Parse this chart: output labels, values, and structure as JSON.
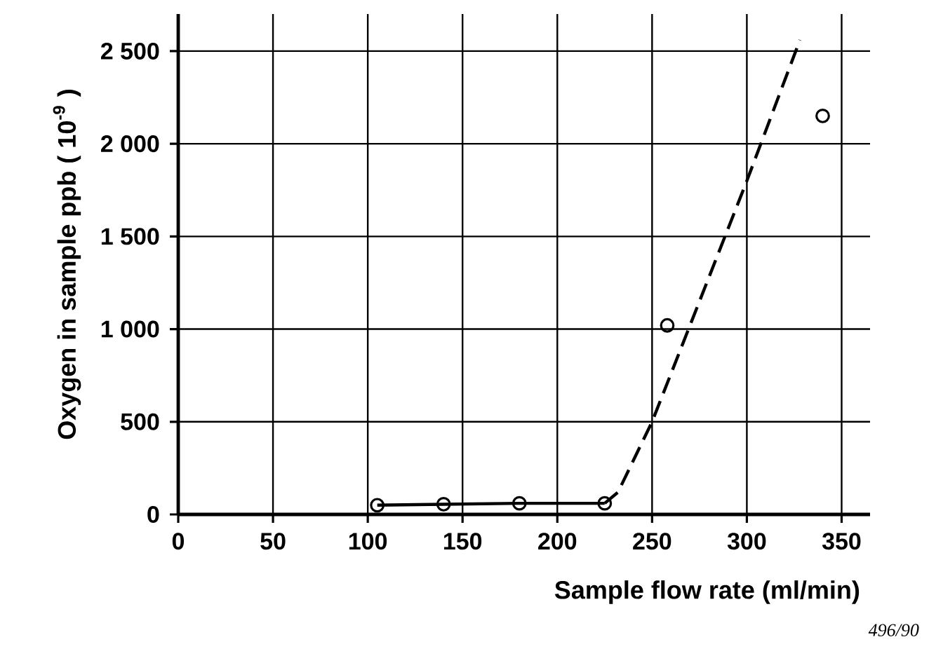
{
  "chart_data": {
    "type": "scatter",
    "xlabel": "Sample flow rate (ml/min)",
    "ylabel": "Oxygen in sample ppb ( 10$^{-9}$ )",
    "annotations": [
      "496/90"
    ],
    "xlim": [
      0,
      365
    ],
    "ylim": [
      0,
      2700
    ],
    "xticks": [
      0,
      50,
      100,
      150,
      200,
      250,
      300,
      350
    ],
    "yticks": [
      0,
      500,
      {
        "value": 1000,
        "label": "1 000"
      },
      {
        "value": 1500,
        "label": "1 500"
      },
      {
        "value": 2000,
        "label": "2 000"
      },
      {
        "value": 2500,
        "label": "2 500"
      }
    ],
    "grid": true,
    "series": [
      {
        "type": "line",
        "color": "#000000",
        "marker": "circle",
        "line_style": "solid",
        "x": [
          105,
          140,
          180,
          225
        ],
        "values": [
          50,
          55,
          60,
          60
        ]
      },
      {
        "color": "#000000",
        "marker": "circle",
        "x": [
          258,
          340
        ],
        "values": [
          1020,
          2150
        ]
      },
      {
        "type": "line",
        "color": "#000000",
        "marker": "none",
        "line_style": "dashed",
        "x": [
          225,
          232,
          250,
          300,
          328
        ],
        "values": [
          60,
          120,
          500,
          1800,
          2560
        ]
      }
    ]
  }
}
